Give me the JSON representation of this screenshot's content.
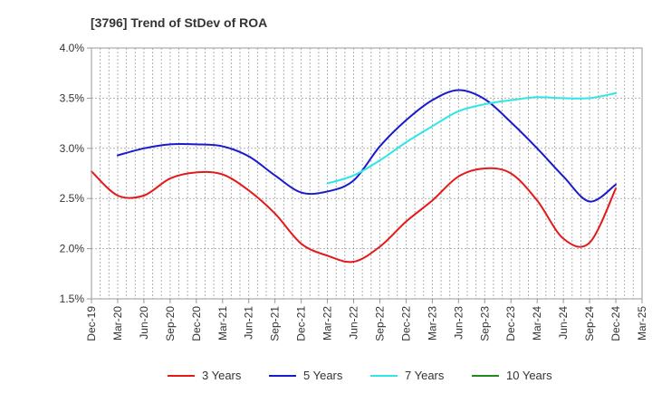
{
  "chart_data": {
    "type": "line",
    "title": "[3796]  Trend of StDev of ROA",
    "xlabel": "",
    "ylabel": "",
    "ylim": [
      1.5,
      4.0
    ],
    "yticks": [
      1.5,
      2.0,
      2.5,
      3.0,
      3.5,
      4.0
    ],
    "ytick_labels": [
      "1.5%",
      "2.0%",
      "2.5%",
      "3.0%",
      "3.5%",
      "4.0%"
    ],
    "categories": [
      "Dec-19",
      "Mar-20",
      "Jun-20",
      "Sep-20",
      "Dec-20",
      "Mar-21",
      "Jun-21",
      "Sep-21",
      "Dec-21",
      "Mar-22",
      "Jun-22",
      "Sep-22",
      "Dec-22",
      "Mar-23",
      "Jun-23",
      "Sep-23",
      "Dec-23",
      "Mar-24",
      "Jun-24",
      "Sep-24",
      "Dec-24",
      "Mar-25"
    ],
    "grid": true,
    "legend_position": "bottom",
    "series": [
      {
        "name": "3 Years",
        "color": "#e31a1c",
        "values": [
          2.77,
          2.53,
          2.53,
          2.7,
          2.76,
          2.74,
          2.58,
          2.35,
          2.05,
          1.93,
          1.87,
          2.02,
          2.27,
          2.48,
          2.72,
          2.8,
          2.75,
          2.48,
          2.1,
          2.06,
          2.6,
          null
        ]
      },
      {
        "name": "5 Years",
        "color": "#1a1acc",
        "values": [
          null,
          2.93,
          3.0,
          3.04,
          3.04,
          3.02,
          2.92,
          2.73,
          2.56,
          2.57,
          2.68,
          3.02,
          3.28,
          3.48,
          3.58,
          3.49,
          3.26,
          3.0,
          2.72,
          2.47,
          2.64,
          null
        ]
      },
      {
        "name": "7 Years",
        "color": "#2ee6e6",
        "values": [
          null,
          null,
          null,
          null,
          null,
          null,
          null,
          null,
          null,
          2.65,
          2.73,
          2.88,
          3.06,
          3.22,
          3.37,
          3.44,
          3.48,
          3.51,
          3.5,
          3.5,
          3.55,
          null
        ]
      },
      {
        "name": "10 Years",
        "color": "#1f8a1f",
        "values": [
          null,
          null,
          null,
          null,
          null,
          null,
          null,
          null,
          null,
          null,
          null,
          null,
          null,
          null,
          null,
          null,
          null,
          null,
          null,
          null,
          null,
          null
        ]
      }
    ]
  }
}
